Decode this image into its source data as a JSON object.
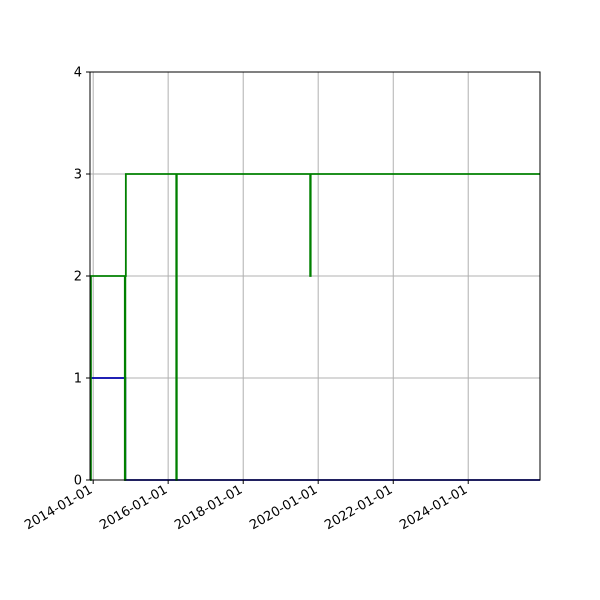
{
  "chart_data": {
    "type": "line",
    "title": "",
    "xlabel": "",
    "ylabel": "",
    "x_axis": {
      "type": "date",
      "range": [
        "2013-12-01",
        "2025-11-30"
      ],
      "ticks": [
        "2014-01-01",
        "2016-01-01",
        "2018-01-01",
        "2020-01-01",
        "2022-01-01",
        "2024-01-01"
      ]
    },
    "y_axis": {
      "range": [
        0,
        4
      ],
      "ticks": [
        0,
        1,
        2,
        3,
        4
      ]
    },
    "grid": true,
    "legend": "none",
    "series": [
      {
        "color": "#0000aa",
        "step": true,
        "points": [
          {
            "x": "2013-12-01",
            "y": 1
          },
          {
            "x": "2014-11-10",
            "y": 0
          },
          {
            "x": "2025-11-30",
            "y": 0
          }
        ]
      },
      {
        "color": "#008000",
        "step": true,
        "points": [
          {
            "x": "2013-12-01",
            "y": 0
          },
          {
            "x": "2013-12-10",
            "y": 2
          },
          {
            "x": "2014-11-05",
            "y": 0
          },
          {
            "x": "2014-11-10",
            "y": 2
          },
          {
            "x": "2014-11-15",
            "y": 3
          },
          {
            "x": "2016-03-20",
            "y": 0
          },
          {
            "x": "2016-03-25",
            "y": 3
          },
          {
            "x": "2019-10-15",
            "y": 2
          },
          {
            "x": "2019-10-20",
            "y": 3
          },
          {
            "x": "2025-11-30",
            "y": 3
          }
        ]
      }
    ]
  }
}
